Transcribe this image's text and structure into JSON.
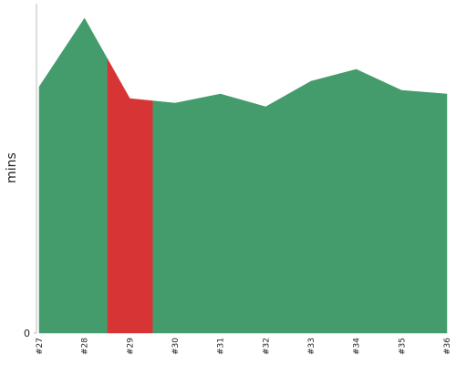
{
  "chart_data": {
    "type": "area",
    "y_label": "mins",
    "categories": [
      "#27",
      "#28",
      "#29",
      "#30",
      "#31",
      "#32",
      "#33",
      "#34",
      "#35",
      "#36"
    ],
    "values": [
      27,
      34.5,
      25.7,
      25.2,
      26.2,
      24.8,
      27.6,
      28.9,
      26.6,
      26.2
    ],
    "point_colors": [
      "#449c6c",
      "#449c6c",
      "#d73535",
      "#449c6c",
      "#449c6c",
      "#449c6c",
      "#449c6c",
      "#449c6c",
      "#449c6c",
      "#449c6c"
    ],
    "ylim": [
      0,
      36
    ],
    "yticks": [
      0
    ]
  }
}
